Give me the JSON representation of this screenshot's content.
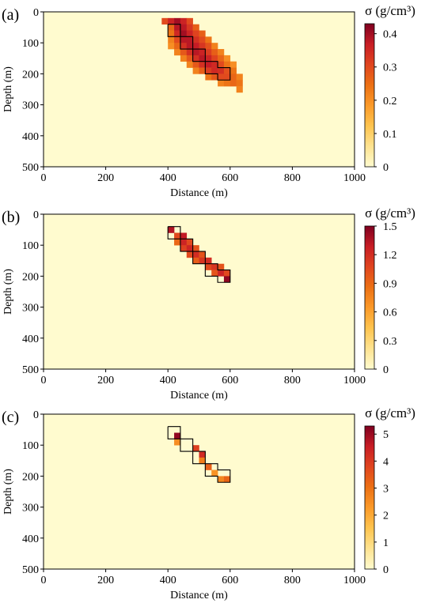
{
  "colors": {
    "background": "#fffbcf",
    "colormap": [
      "#fffbcf",
      "#fee391",
      "#fec44f",
      "#fb9a29",
      "#ec7014",
      "#e0451f",
      "#c81d25",
      "#7f0020"
    ],
    "outline": "#000000"
  },
  "chart_data": [
    {
      "type": "heatmap",
      "panel_label": "(a)",
      "xlabel": "Distance (m)",
      "ylabel": "Depth (m)",
      "xlim": [
        0,
        1000
      ],
      "ylim": [
        500,
        0
      ],
      "xticks": [
        0,
        200,
        400,
        600,
        800,
        1000
      ],
      "yticks": [
        0,
        100,
        200,
        300,
        400,
        500
      ],
      "colorbar": {
        "title": "σ (g/cm³)",
        "range": [
          0,
          0.43
        ],
        "ticks": [
          "0",
          "0.1",
          "0.2",
          "0.3",
          "0.4"
        ],
        "tick_values": [
          0,
          0.1,
          0.2,
          0.3,
          0.4
        ]
      },
      "cell_size": 20,
      "cells": [
        [
          380,
          20,
          0.3
        ],
        [
          400,
          20,
          0.36
        ],
        [
          420,
          20,
          0.4
        ],
        [
          440,
          20,
          0.36
        ],
        [
          460,
          20,
          0.3
        ],
        [
          400,
          40,
          0.26
        ],
        [
          420,
          40,
          0.38
        ],
        [
          440,
          40,
          0.38
        ],
        [
          460,
          40,
          0.33
        ],
        [
          480,
          40,
          0.27
        ],
        [
          400,
          60,
          0.24
        ],
        [
          420,
          60,
          0.35
        ],
        [
          440,
          60,
          0.4
        ],
        [
          460,
          60,
          0.36
        ],
        [
          480,
          60,
          0.31
        ],
        [
          500,
          60,
          0.27
        ],
        [
          400,
          80,
          0.22
        ],
        [
          420,
          80,
          0.3
        ],
        [
          440,
          80,
          0.38
        ],
        [
          460,
          80,
          0.38
        ],
        [
          480,
          80,
          0.34
        ],
        [
          500,
          80,
          0.3
        ],
        [
          520,
          80,
          0.24
        ],
        [
          400,
          100,
          0.2
        ],
        [
          420,
          100,
          0.26
        ],
        [
          440,
          100,
          0.34
        ],
        [
          460,
          100,
          0.38
        ],
        [
          480,
          100,
          0.37
        ],
        [
          500,
          100,
          0.33
        ],
        [
          520,
          100,
          0.29
        ],
        [
          540,
          100,
          0.22
        ],
        [
          420,
          120,
          0.22
        ],
        [
          440,
          120,
          0.28
        ],
        [
          460,
          120,
          0.34
        ],
        [
          480,
          120,
          0.38
        ],
        [
          500,
          120,
          0.36
        ],
        [
          520,
          120,
          0.32
        ],
        [
          540,
          120,
          0.27
        ],
        [
          560,
          120,
          0.22
        ],
        [
          440,
          140,
          0.22
        ],
        [
          460,
          140,
          0.28
        ],
        [
          480,
          140,
          0.34
        ],
        [
          500,
          140,
          0.38
        ],
        [
          520,
          140,
          0.36
        ],
        [
          540,
          140,
          0.31
        ],
        [
          560,
          140,
          0.26
        ],
        [
          580,
          140,
          0.2
        ],
        [
          460,
          160,
          0.22
        ],
        [
          480,
          160,
          0.28
        ],
        [
          500,
          160,
          0.34
        ],
        [
          520,
          160,
          0.37
        ],
        [
          540,
          160,
          0.35
        ],
        [
          560,
          160,
          0.3
        ],
        [
          580,
          160,
          0.24
        ],
        [
          600,
          160,
          0.2
        ],
        [
          480,
          180,
          0.22
        ],
        [
          500,
          180,
          0.27
        ],
        [
          520,
          180,
          0.32
        ],
        [
          540,
          180,
          0.35
        ],
        [
          560,
          180,
          0.34
        ],
        [
          580,
          180,
          0.29
        ],
        [
          600,
          180,
          0.24
        ],
        [
          520,
          200,
          0.24
        ],
        [
          540,
          200,
          0.28
        ],
        [
          560,
          200,
          0.3
        ],
        [
          580,
          200,
          0.3
        ],
        [
          600,
          200,
          0.26
        ],
        [
          620,
          200,
          0.22
        ],
        [
          560,
          220,
          0.22
        ],
        [
          580,
          220,
          0.24
        ],
        [
          600,
          220,
          0.26
        ],
        [
          620,
          220,
          0.24
        ],
        [
          620,
          240,
          0.22
        ]
      ]
    },
    {
      "type": "heatmap",
      "panel_label": "(b)",
      "xlabel": "Distance (m)",
      "ylabel": "Depth (m)",
      "xlim": [
        0,
        1000
      ],
      "ylim": [
        500,
        0
      ],
      "xticks": [
        0,
        200,
        400,
        600,
        800,
        1000
      ],
      "yticks": [
        0,
        100,
        200,
        300,
        400,
        500
      ],
      "colorbar": {
        "title": "σ (g/cm³)",
        "range": [
          0,
          1.5
        ],
        "ticks": [
          "0",
          "0.3",
          "0.6",
          "0.9",
          "1.2",
          "1.5"
        ],
        "tick_values": [
          0,
          0.3,
          0.6,
          0.9,
          1.2,
          1.5
        ]
      },
      "cell_size": 20,
      "cells": [
        [
          400,
          40,
          1.35
        ],
        [
          420,
          60,
          1.05
        ],
        [
          440,
          60,
          1.3
        ],
        [
          420,
          80,
          0.9
        ],
        [
          440,
          80,
          1.25
        ],
        [
          460,
          80,
          1.05
        ],
        [
          440,
          100,
          1.1
        ],
        [
          460,
          100,
          1.25
        ],
        [
          480,
          100,
          1.0
        ],
        [
          460,
          120,
          1.05
        ],
        [
          480,
          120,
          1.2
        ],
        [
          500,
          120,
          1.0
        ],
        [
          480,
          140,
          0.95
        ],
        [
          500,
          140,
          1.15
        ],
        [
          520,
          140,
          1.2
        ],
        [
          520,
          160,
          1.05
        ],
        [
          540,
          160,
          1.15
        ],
        [
          560,
          160,
          1.0
        ],
        [
          540,
          180,
          1.0
        ],
        [
          560,
          180,
          1.25
        ],
        [
          580,
          180,
          1.05
        ],
        [
          580,
          200,
          1.45
        ]
      ]
    },
    {
      "type": "heatmap",
      "panel_label": "(c)",
      "xlabel": "Distance (m)",
      "ylabel": "Depth (m)",
      "xlim": [
        0,
        1000
      ],
      "ylim": [
        500,
        0
      ],
      "xticks": [
        0,
        200,
        400,
        600,
        800,
        1000
      ],
      "yticks": [
        0,
        100,
        200,
        300,
        400,
        500
      ],
      "colorbar": {
        "title": "σ (g/cm³)",
        "range": [
          0,
          5.3
        ],
        "ticks": [
          "0",
          "1",
          "2",
          "3",
          "4",
          "5"
        ],
        "tick_values": [
          0,
          1,
          2,
          3,
          4,
          5
        ]
      },
      "cell_size": 20,
      "cells": [
        [
          420,
          60,
          5.1
        ],
        [
          420,
          80,
          2.5
        ],
        [
          480,
          100,
          3.9
        ],
        [
          500,
          120,
          4.3
        ],
        [
          500,
          140,
          2.8
        ],
        [
          520,
          160,
          3.3
        ],
        [
          540,
          180,
          2.4
        ],
        [
          560,
          200,
          2.6
        ],
        [
          580,
          200,
          3.2
        ]
      ]
    }
  ]
}
